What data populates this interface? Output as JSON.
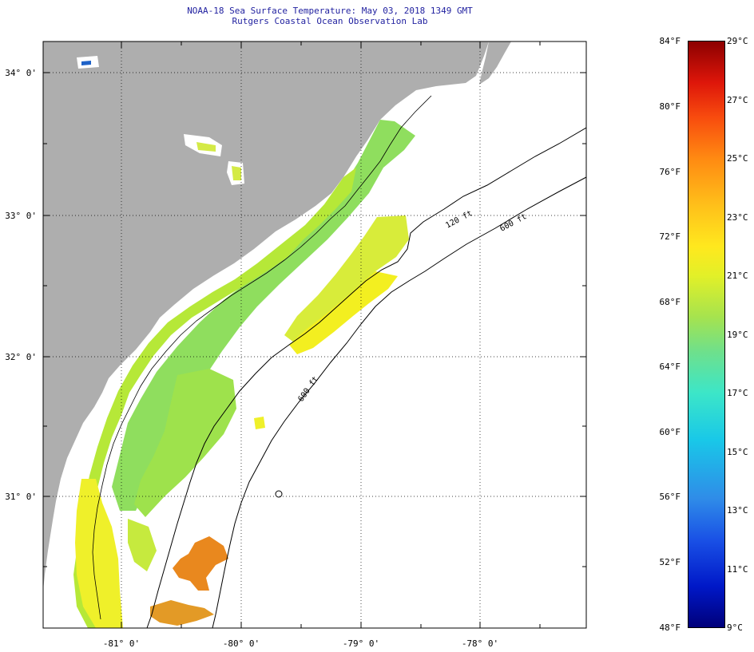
{
  "header": {
    "title": "NOAA-18 Sea Surface Temperature:  May 03, 2018 1349 GMT",
    "subtitle": "Rutgers Coastal Ocean Observation Lab"
  },
  "map": {
    "lat_labels": [
      "34° 0'",
      "33° 0'",
      "32° 0'",
      "31° 0'"
    ],
    "lon_labels": [
      "-81° 0'",
      "-80° 0'",
      "-79° 0'",
      "-78° 0'"
    ],
    "contour_labels": [
      "120 ft",
      "600 ft",
      "600 ft"
    ]
  },
  "colorbar": {
    "fahrenheit": [
      "84°F",
      "80°F",
      "76°F",
      "72°F",
      "68°F",
      "64°F",
      "60°F",
      "56°F",
      "52°F",
      "48°F"
    ],
    "celsius": [
      "29°C",
      "27°C",
      "25°C",
      "23°C",
      "21°C",
      "19°C",
      "17°C",
      "15°C",
      "13°C",
      "11°C",
      "9°C"
    ],
    "min_f": 48,
    "max_f": 84,
    "min_c": 9,
    "max_c": 29
  },
  "colors": {
    "land": "#aeaeae",
    "sst_cool": "#7fdc6e",
    "sst_mid": "#b6e838",
    "sst_warm": "#f2ee22",
    "sst_hot": "#ea8e24",
    "title_text": "#1f1f9f"
  }
}
